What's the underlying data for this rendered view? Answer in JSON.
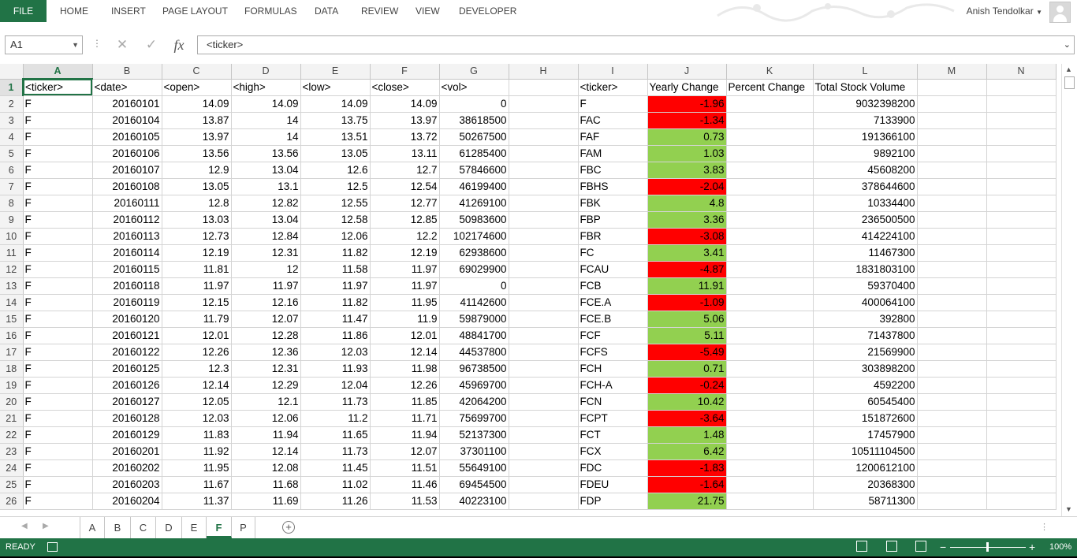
{
  "ribbon": {
    "file": "FILE",
    "tabs": [
      "HOME",
      "INSERT",
      "PAGE LAYOUT",
      "FORMULAS",
      "DATA",
      "REVIEW",
      "VIEW",
      "DEVELOPER"
    ],
    "user": "Anish Tendolkar"
  },
  "formula_bar": {
    "name_box": "A1",
    "fx": "fx",
    "content": "<ticker>"
  },
  "columns": [
    "A",
    "B",
    "C",
    "D",
    "E",
    "F",
    "G",
    "H",
    "I",
    "J",
    "K",
    "L",
    "M",
    "N"
  ],
  "header_row": [
    "<ticker>",
    "<date>",
    "<open>",
    "<high>",
    "<low>",
    "<close>",
    "<vol>",
    "",
    "<ticker>",
    "Yearly Change",
    "Percent Change",
    "Total Stock Volume",
    "",
    ""
  ],
  "rows": [
    [
      "F",
      "20160101",
      "14.09",
      "14.09",
      "14.09",
      "14.09",
      "0",
      "",
      "F",
      "-1.96",
      "",
      "9032398200"
    ],
    [
      "F",
      "20160104",
      "13.87",
      "14",
      "13.75",
      "13.97",
      "38618500",
      "",
      "FAC",
      "-1.34",
      "",
      "7133900"
    ],
    [
      "F",
      "20160105",
      "13.97",
      "14",
      "13.51",
      "13.72",
      "50267500",
      "",
      "FAF",
      "0.73",
      "",
      "191366100"
    ],
    [
      "F",
      "20160106",
      "13.56",
      "13.56",
      "13.05",
      "13.11",
      "61285400",
      "",
      "FAM",
      "1.03",
      "",
      "9892100"
    ],
    [
      "F",
      "20160107",
      "12.9",
      "13.04",
      "12.6",
      "12.7",
      "57846600",
      "",
      "FBC",
      "3.83",
      "",
      "45608200"
    ],
    [
      "F",
      "20160108",
      "13.05",
      "13.1",
      "12.5",
      "12.54",
      "46199400",
      "",
      "FBHS",
      "-2.04",
      "",
      "378644600"
    ],
    [
      "F",
      "20160111",
      "12.8",
      "12.82",
      "12.55",
      "12.77",
      "41269100",
      "",
      "FBK",
      "4.8",
      "",
      "10334400"
    ],
    [
      "F",
      "20160112",
      "13.03",
      "13.04",
      "12.58",
      "12.85",
      "50983600",
      "",
      "FBP",
      "3.36",
      "",
      "236500500"
    ],
    [
      "F",
      "20160113",
      "12.73",
      "12.84",
      "12.06",
      "12.2",
      "102174600",
      "",
      "FBR",
      "-3.08",
      "",
      "414224100"
    ],
    [
      "F",
      "20160114",
      "12.19",
      "12.31",
      "11.82",
      "12.19",
      "62938600",
      "",
      "FC",
      "3.41",
      "",
      "11467300"
    ],
    [
      "F",
      "20160115",
      "11.81",
      "12",
      "11.58",
      "11.97",
      "69029900",
      "",
      "FCAU",
      "-4.87",
      "",
      "1831803100"
    ],
    [
      "F",
      "20160118",
      "11.97",
      "11.97",
      "11.97",
      "11.97",
      "0",
      "",
      "FCB",
      "11.91",
      "",
      "59370400"
    ],
    [
      "F",
      "20160119",
      "12.15",
      "12.16",
      "11.82",
      "11.95",
      "41142600",
      "",
      "FCE.A",
      "-1.09",
      "",
      "400064100"
    ],
    [
      "F",
      "20160120",
      "11.79",
      "12.07",
      "11.47",
      "11.9",
      "59879000",
      "",
      "FCE.B",
      "5.06",
      "",
      "392800"
    ],
    [
      "F",
      "20160121",
      "12.01",
      "12.28",
      "11.86",
      "12.01",
      "48841700",
      "",
      "FCF",
      "5.11",
      "",
      "71437800"
    ],
    [
      "F",
      "20160122",
      "12.26",
      "12.36",
      "12.03",
      "12.14",
      "44537800",
      "",
      "FCFS",
      "-5.49",
      "",
      "21569900"
    ],
    [
      "F",
      "20160125",
      "12.3",
      "12.31",
      "11.93",
      "11.98",
      "96738500",
      "",
      "FCH",
      "0.71",
      "",
      "303898200"
    ],
    [
      "F",
      "20160126",
      "12.14",
      "12.29",
      "12.04",
      "12.26",
      "45969700",
      "",
      "FCH-A",
      "-0.24",
      "",
      "4592200"
    ],
    [
      "F",
      "20160127",
      "12.05",
      "12.1",
      "11.73",
      "11.85",
      "42064200",
      "",
      "FCN",
      "10.42",
      "",
      "60545400"
    ],
    [
      "F",
      "20160128",
      "12.03",
      "12.06",
      "11.2",
      "11.71",
      "75699700",
      "",
      "FCPT",
      "-3.64",
      "",
      "151872600"
    ],
    [
      "F",
      "20160129",
      "11.83",
      "11.94",
      "11.65",
      "11.94",
      "52137300",
      "",
      "FCT",
      "1.48",
      "",
      "17457900"
    ],
    [
      "F",
      "20160201",
      "11.92",
      "12.14",
      "11.73",
      "12.07",
      "37301100",
      "",
      "FCX",
      "6.42",
      "",
      "10511104500"
    ],
    [
      "F",
      "20160202",
      "11.95",
      "12.08",
      "11.45",
      "11.51",
      "55649100",
      "",
      "FDC",
      "-1.83",
      "",
      "1200612100"
    ],
    [
      "F",
      "20160203",
      "11.67",
      "11.68",
      "11.02",
      "11.46",
      "69454500",
      "",
      "FDEU",
      "-1.64",
      "",
      "20368300"
    ],
    [
      "F",
      "20160204",
      "11.37",
      "11.69",
      "11.26",
      "11.53",
      "40223100",
      "",
      "FDP",
      "21.75",
      "",
      "58711300"
    ]
  ],
  "sheets": [
    "A",
    "B",
    "C",
    "D",
    "E",
    "F",
    "P"
  ],
  "active_sheet": "F",
  "status": {
    "ready": "READY",
    "zoom": "100%"
  },
  "colors": {
    "excel_green": "#217346",
    "positive_fill": "#92d050",
    "negative_fill": "#ff0000"
  }
}
